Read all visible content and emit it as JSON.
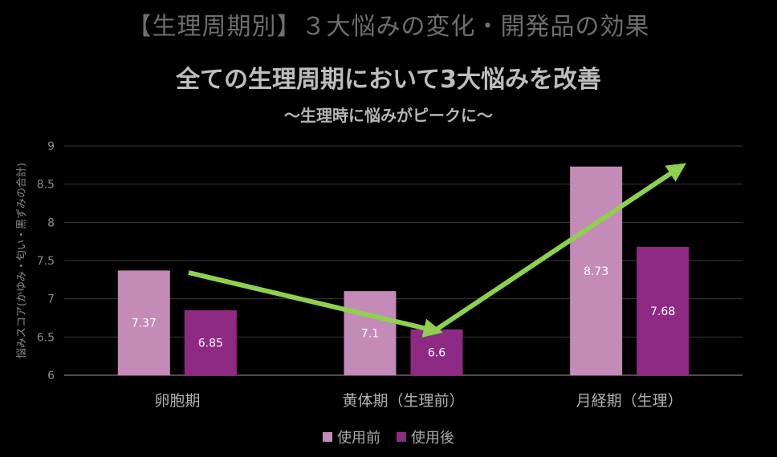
{
  "header": {
    "title": "【生理周期別】３大悩みの変化・開発品の効果",
    "main_title": "全ての生理周期において3大悩みを改善",
    "subtitle": "〜生理時に悩みがピークに〜"
  },
  "chart_data": {
    "type": "bar",
    "ylabel": "悩みスコア(かゆみ・匂い・黒ずみの合計)",
    "ylim": [
      6,
      9
    ],
    "yticks": [
      "6",
      "6.5",
      "7",
      "7.5",
      "8",
      "8.5",
      "9"
    ],
    "grid": true,
    "legend_position": "bottom",
    "categories": [
      "卵胞期",
      "黄体期（生理前）",
      "月経期（生理）"
    ],
    "series": [
      {
        "name": "使用前",
        "color": "#c48ab8",
        "values": [
          7.37,
          7.1,
          8.73
        ],
        "labels": [
          "7.37",
          "7.1",
          "8.73"
        ]
      },
      {
        "name": "使用後",
        "color": "#8e2a83",
        "values": [
          6.85,
          6.6,
          7.68
        ],
        "labels": [
          "6.85",
          "6.6",
          "7.68"
        ]
      }
    ],
    "annotation_arrow_color": "#8fd14f"
  }
}
